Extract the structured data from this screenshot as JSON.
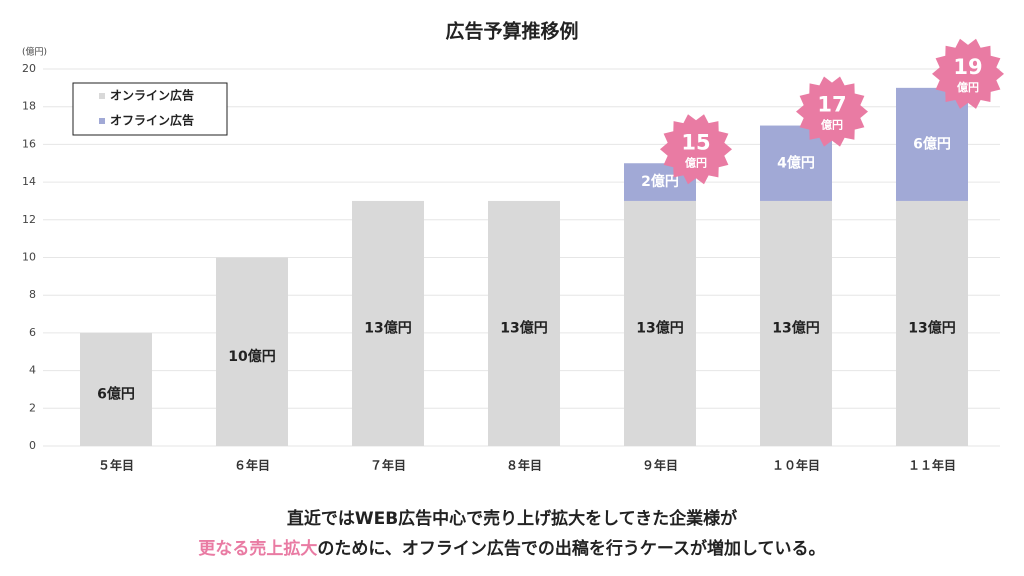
{
  "chart_data": {
    "type": "stacked_bar",
    "title": "広告予算推移例",
    "y_unit": "(億円)",
    "categories": [
      "５年目",
      "６年目",
      "７年目",
      "８年目",
      "９年目",
      "１０年目",
      "１１年目"
    ],
    "series": [
      {
        "name": "オンライン広告",
        "color": "#d9d9d9",
        "values": [
          6,
          10,
          13,
          13,
          13,
          13,
          13
        ],
        "value_labels": [
          "6億円",
          "10億円",
          "13億円",
          "13億円",
          "13億円",
          "13億円",
          "13億円"
        ]
      },
      {
        "name": "オフライン広告",
        "color": "#a1a9d6",
        "values": [
          null,
          null,
          null,
          null,
          2,
          4,
          6
        ],
        "value_labels": [
          null,
          null,
          null,
          null,
          "2億円",
          "4億円",
          "6億円"
        ]
      }
    ],
    "totals": [
      null,
      null,
      null,
      null,
      15,
      17,
      19
    ],
    "total_unit": "億円",
    "total_color": "#e97ba3",
    "ylim": [
      0,
      20
    ],
    "yticks": [
      0,
      2,
      4,
      6,
      8,
      10,
      12,
      14,
      16,
      18,
      20
    ],
    "grid": true,
    "legend": "upper left"
  },
  "caption": {
    "line1": "直近ではWEB広告中心で売り上げ拡大をしてきた企業様が",
    "line2_highlight": "更なる売上拡大",
    "line2_rest": "のために、オフライン広告での出稿を行うケースが増加している。"
  }
}
